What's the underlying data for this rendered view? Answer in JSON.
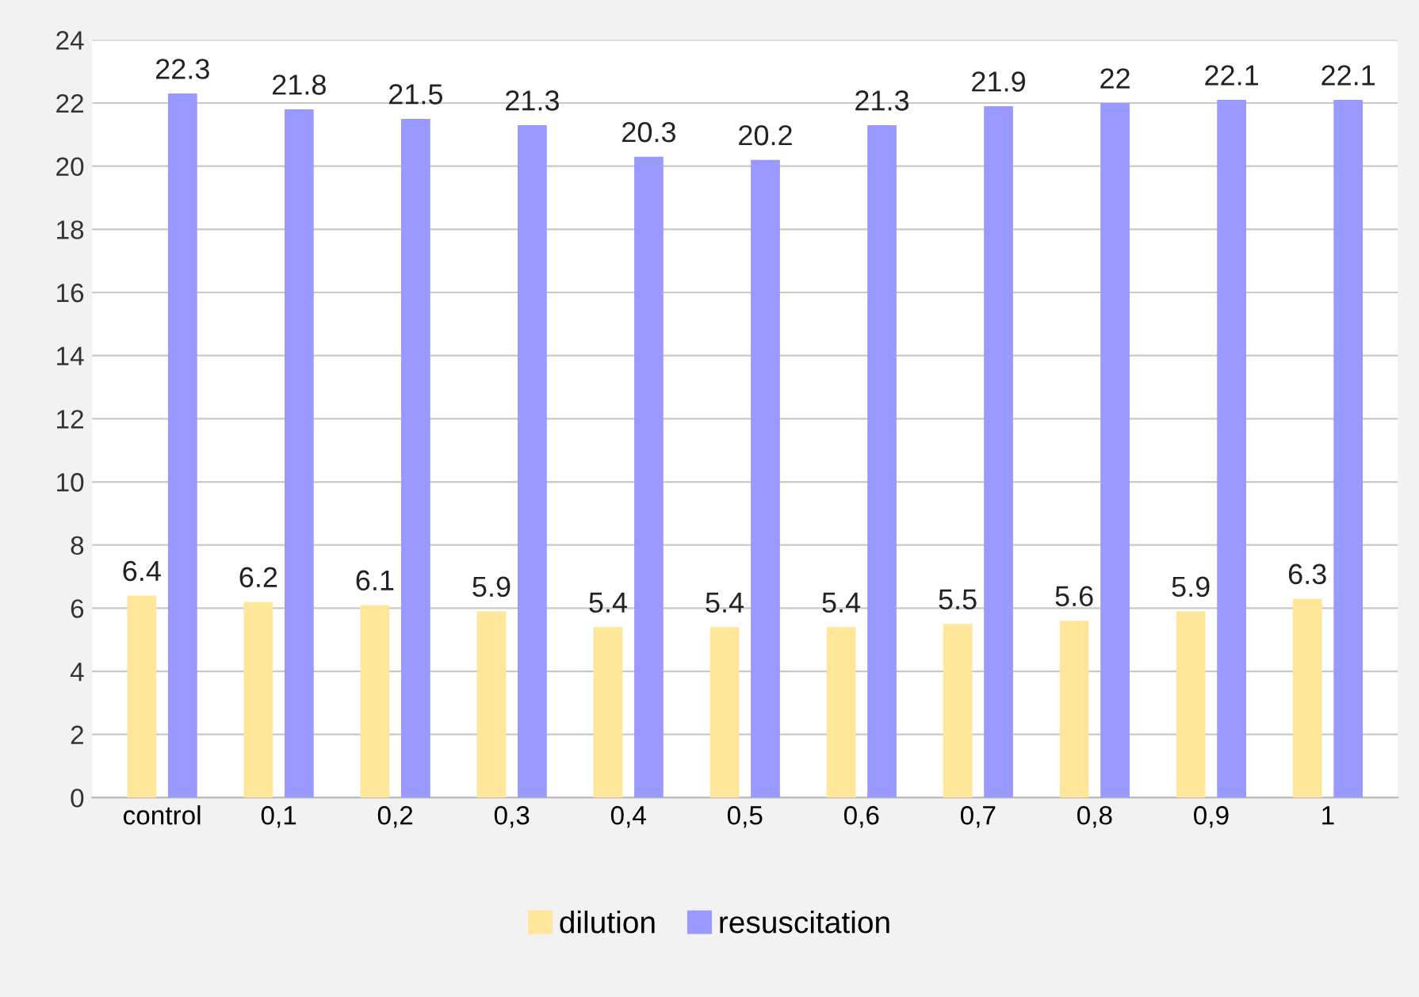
{
  "chart_data": {
    "type": "bar",
    "categories": [
      "control",
      "0,1",
      "0,2",
      "0,3",
      "0,4",
      "0,5",
      "0,6",
      "0,7",
      "0,8",
      "0,9",
      "1"
    ],
    "series": [
      {
        "name": "dilution",
        "color": "#ffe699",
        "values": [
          6.4,
          6.2,
          6.1,
          5.9,
          5.4,
          5.4,
          5.4,
          5.5,
          5.6,
          5.9,
          6.3
        ]
      },
      {
        "name": "resuscitation",
        "color": "#9999ff",
        "values": [
          22.3,
          21.8,
          21.5,
          21.3,
          20.3,
          20.2,
          21.3,
          21.9,
          22,
          22.1,
          22.1
        ]
      }
    ],
    "ylim": [
      0,
      24
    ],
    "yticks": [
      0,
      2,
      4,
      6,
      8,
      10,
      12,
      14,
      16,
      18,
      20,
      22,
      24
    ],
    "grid": "y",
    "legend": "bottom",
    "data_labels": true
  }
}
